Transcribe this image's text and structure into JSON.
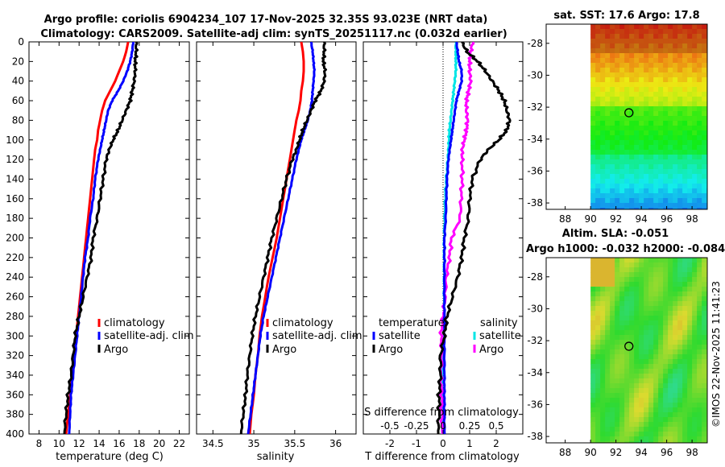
{
  "titles": {
    "line1": "Argo profile: coriolis 6904234_107 17-Nov-2025 32.35S 93.023E (NRT data)",
    "line2": "Climatology: CARS2009. Satellite-adj clim: synTS_20251117.nc (0.032d earlier)"
  },
  "colors": {
    "climatology": "#ff0000",
    "satellite": "#0000ff",
    "argo": "#000000",
    "salinity_satellite": "#00e5e5",
    "salinity_argo": "#ff00ff"
  },
  "depth_ticks": [
    "0",
    "20",
    "40",
    "60",
    "80",
    "100",
    "120",
    "140",
    "160",
    "180",
    "200",
    "220",
    "240",
    "260",
    "280",
    "300",
    "320",
    "340",
    "360",
    "380",
    "400"
  ],
  "chart_data": [
    {
      "type": "line",
      "name": "temperature profile",
      "xlabel": "temperature (deg C)",
      "ylabel": "depth",
      "xlim": [
        7,
        23
      ],
      "ylim": [
        400,
        0
      ],
      "xticks": [
        "8",
        "10",
        "12",
        "14",
        "16",
        "18",
        "20",
        "22"
      ],
      "depth": [
        0,
        10,
        20,
        30,
        40,
        50,
        60,
        70,
        80,
        90,
        100,
        110,
        120,
        140,
        160,
        180,
        200,
        220,
        240,
        260,
        280,
        300,
        320,
        340,
        360,
        380,
        400
      ],
      "series": [
        {
          "name": "climatology",
          "values": [
            16.9,
            16.7,
            16.4,
            16.0,
            15.6,
            15.1,
            14.6,
            14.3,
            14.1,
            13.9,
            13.8,
            13.6,
            13.5,
            13.3,
            13.1,
            12.9,
            12.7,
            12.5,
            12.3,
            12.1,
            11.9,
            11.7,
            11.5,
            11.3,
            11.1,
            10.9,
            10.7
          ]
        },
        {
          "name": "satellite-adj. clim",
          "values": [
            17.4,
            17.3,
            17.1,
            16.8,
            16.4,
            15.9,
            15.3,
            14.9,
            14.7,
            14.5,
            14.3,
            14.1,
            13.9,
            13.6,
            13.4,
            13.1,
            12.9,
            12.6,
            12.4,
            12.2,
            12.0,
            11.8,
            11.6,
            11.4,
            11.2,
            11.1,
            11.0
          ]
        },
        {
          "name": "Argo",
          "values": [
            17.7,
            17.7,
            17.6,
            17.6,
            17.5,
            17.3,
            17.1,
            16.7,
            16.3,
            15.9,
            15.4,
            15.0,
            14.7,
            14.4,
            14.1,
            13.8,
            13.4,
            13.2,
            12.8,
            12.4,
            12.0,
            11.6,
            11.4,
            11.2,
            10.9,
            10.7,
            10.5
          ]
        }
      ],
      "legend": [
        "climatology",
        "satellite-adj. clim",
        "Argo"
      ]
    },
    {
      "type": "line",
      "name": "salinity profile",
      "xlabel": "salinity",
      "ylabel": "depth",
      "xlim": [
        34.3,
        36.25
      ],
      "ylim": [
        400,
        0
      ],
      "xticks": [
        "34.5",
        "35",
        "35.5",
        "36"
      ],
      "depth": [
        0,
        10,
        20,
        30,
        40,
        50,
        60,
        70,
        80,
        90,
        100,
        110,
        120,
        140,
        160,
        180,
        200,
        220,
        240,
        260,
        280,
        300,
        320,
        340,
        360,
        380,
        400
      ],
      "series": [
        {
          "name": "climatology",
          "values": [
            35.58,
            35.6,
            35.61,
            35.61,
            35.6,
            35.58,
            35.57,
            35.55,
            35.52,
            35.5,
            35.48,
            35.46,
            35.44,
            35.4,
            35.36,
            35.32,
            35.28,
            35.23,
            35.18,
            35.14,
            35.1,
            35.07,
            35.05,
            35.02,
            35.0,
            34.97,
            34.95
          ]
        },
        {
          "name": "satellite-adj. clim",
          "values": [
            35.7,
            35.72,
            35.73,
            35.74,
            35.73,
            35.72,
            35.71,
            35.69,
            35.66,
            35.62,
            35.58,
            35.55,
            35.52,
            35.47,
            35.42,
            35.37,
            35.32,
            35.27,
            35.22,
            35.17,
            35.12,
            35.08,
            35.05,
            35.02,
            34.99,
            34.96,
            34.93
          ]
        },
        {
          "name": "Argo",
          "values": [
            35.86,
            35.86,
            35.85,
            35.87,
            35.86,
            35.82,
            35.75,
            35.7,
            35.65,
            35.6,
            35.56,
            35.52,
            35.47,
            35.4,
            35.34,
            35.28,
            35.22,
            35.17,
            35.12,
            35.07,
            35.02,
            34.98,
            34.95,
            34.92,
            34.9,
            34.87,
            34.84
          ]
        }
      ],
      "legend": [
        "climatology",
        "satellite-adj. clim",
        "Argo"
      ]
    },
    {
      "type": "line",
      "name": "difference from climatology",
      "xlabel": "T difference from climatology",
      "xlabel_top": "S difference from climatology",
      "ylabel": "depth",
      "xlim": [
        -3,
        3
      ],
      "s_xlim": [
        -0.75,
        0.75
      ],
      "ylim": [
        400,
        0
      ],
      "xticks": [
        "-2",
        "-1",
        "0",
        "1",
        "2"
      ],
      "s_xticks": [
        "-0.5",
        "-0.25",
        "0",
        "0.25",
        "0.5"
      ],
      "depth": [
        0,
        10,
        20,
        30,
        40,
        50,
        60,
        70,
        80,
        90,
        100,
        110,
        120,
        140,
        160,
        180,
        200,
        220,
        240,
        260,
        280,
        300,
        320,
        340,
        360,
        380,
        400
      ],
      "series": [
        {
          "name": "temperature satellite",
          "values": [
            0.5,
            0.55,
            0.6,
            0.7,
            0.7,
            0.6,
            0.5,
            0.45,
            0.4,
            0.35,
            0.3,
            0.25,
            0.2,
            0.15,
            0.12,
            0.1,
            0.05,
            0.05,
            0.05,
            0.05,
            0.05,
            0.05,
            0.05,
            0.05,
            0.05,
            0.05,
            0.05
          ]
        },
        {
          "name": "temperature Argo",
          "values": [
            0.7,
            0.9,
            1.3,
            1.6,
            1.85,
            2.1,
            2.3,
            2.4,
            2.5,
            2.4,
            2.1,
            1.7,
            1.4,
            1.1,
            1.0,
            0.95,
            0.8,
            0.7,
            0.55,
            0.35,
            0.15,
            0.05,
            -0.1,
            -0.1,
            -0.15,
            -0.15,
            -0.2
          ]
        },
        {
          "name": "salinity satellite",
          "values": [
            0.12,
            0.12,
            0.12,
            0.12,
            0.11,
            0.1,
            0.09,
            0.08,
            0.07,
            0.06,
            0.055,
            0.05,
            0.045,
            0.03,
            0.02,
            0.015,
            0.01,
            0.01,
            0.01,
            0.01,
            0.01,
            0.01,
            0.0,
            -0.01,
            -0.01,
            -0.01,
            -0.01
          ]
        },
        {
          "name": "salinity Argo",
          "values": [
            0.28,
            0.26,
            0.25,
            0.25,
            0.26,
            0.24,
            0.22,
            0.22,
            0.23,
            0.22,
            0.2,
            0.18,
            0.18,
            0.18,
            0.17,
            0.16,
            0.08,
            0.06,
            0.03,
            0.02,
            0.0,
            -0.02,
            -0.01,
            -0.02,
            -0.01,
            -0.01,
            -0.01
          ]
        }
      ],
      "legend_temperature_title": "temperature",
      "legend_salinity_title": "salinity",
      "legend_temperature": [
        "satellite",
        "Argo"
      ],
      "legend_salinity": [
        "satellite",
        "Argo"
      ]
    },
    {
      "type": "heatmap",
      "name": "sat SST map",
      "title": "sat. SST: 17.6 Argo: 17.8",
      "xticks": [
        "88",
        "90",
        "92",
        "94",
        "96",
        "98"
      ],
      "yticks": [
        "-28",
        "-30",
        "-32",
        "-34",
        "-36",
        "-38"
      ],
      "xlim": [
        86.5,
        99.2
      ],
      "ylim": [
        -38.4,
        -26.8
      ],
      "data_lon_start": 90,
      "argo_lon": 93.023,
      "argo_lat": -32.35
    },
    {
      "type": "heatmap",
      "name": "altimetry SLA map",
      "title_line1": "Altim. SLA: -0.051",
      "title_line2": "Argo h1000: -0.032 h2000: -0.084",
      "xticks": [
        "88",
        "90",
        "92",
        "94",
        "96",
        "98"
      ],
      "yticks": [
        "-28",
        "-30",
        "-32",
        "-34",
        "-36",
        "-38"
      ],
      "xlim": [
        86.5,
        99.2
      ],
      "ylim": [
        -38.4,
        -26.8
      ],
      "data_lon_start": 90,
      "argo_lon": 93.023,
      "argo_lat": -32.35
    }
  ],
  "side_text": "©IMOS 22-Nov-2025 11:41:23"
}
